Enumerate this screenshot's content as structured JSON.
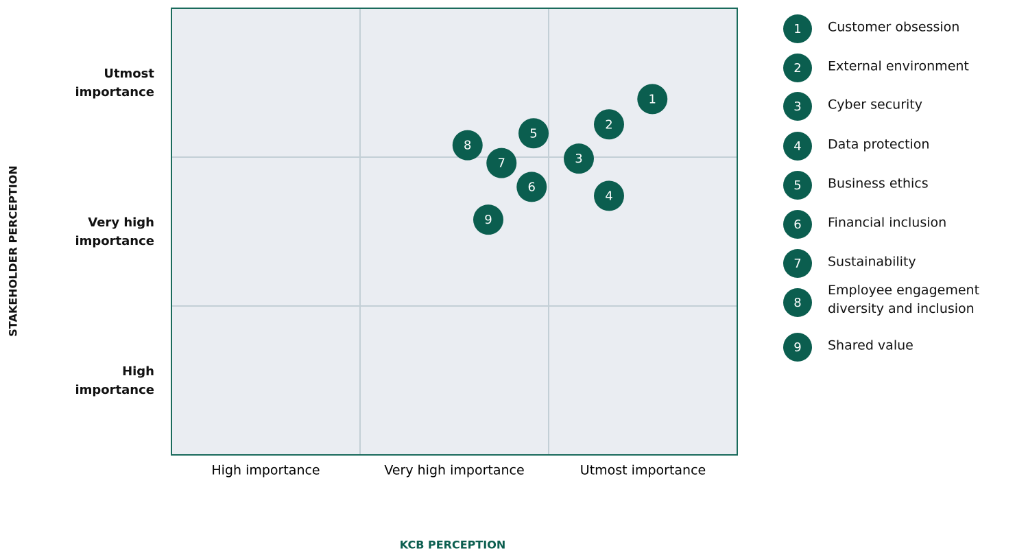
{
  "chart_data": {
    "type": "scatter",
    "x_label": "KCB PERCEPTION",
    "y_label": "STAKEHOLDER PERCEPTION",
    "labels": [
      "1",
      "2",
      "3",
      "4",
      "5",
      "6",
      "7",
      "8",
      "9"
    ],
    "names": [
      "Customer obsession",
      "External environment",
      "Cyber security",
      "Data protection",
      "Business ethics",
      "Financial inclusion",
      "Sustainability",
      "Employee engagement diversity and inclusion",
      "Shared value"
    ],
    "x": [
      2.55,
      2.32,
      2.16,
      2.32,
      1.92,
      1.91,
      1.75,
      1.57,
      1.68
    ],
    "y": [
      2.39,
      2.22,
      1.99,
      1.74,
      2.16,
      1.8,
      1.96,
      2.08,
      1.58
    ],
    "color": "#0b5e4f",
    "xlim": [
      0,
      3
    ],
    "ylim": [
      0,
      3
    ],
    "xticks": [
      {
        "value": 0.5,
        "label": "High importance"
      },
      {
        "value": 1.5,
        "label": "Very high importance"
      },
      {
        "value": 2.5,
        "label": "Utmost importance"
      }
    ],
    "yticks": [
      {
        "value": 0.5,
        "label": "High importance"
      },
      {
        "value": 1.5,
        "label": "Very high importance"
      },
      {
        "value": 2.5,
        "label": "Utmost importance"
      }
    ],
    "xgrid": [
      1,
      2
    ],
    "ygrid": [
      1,
      2
    ]
  }
}
